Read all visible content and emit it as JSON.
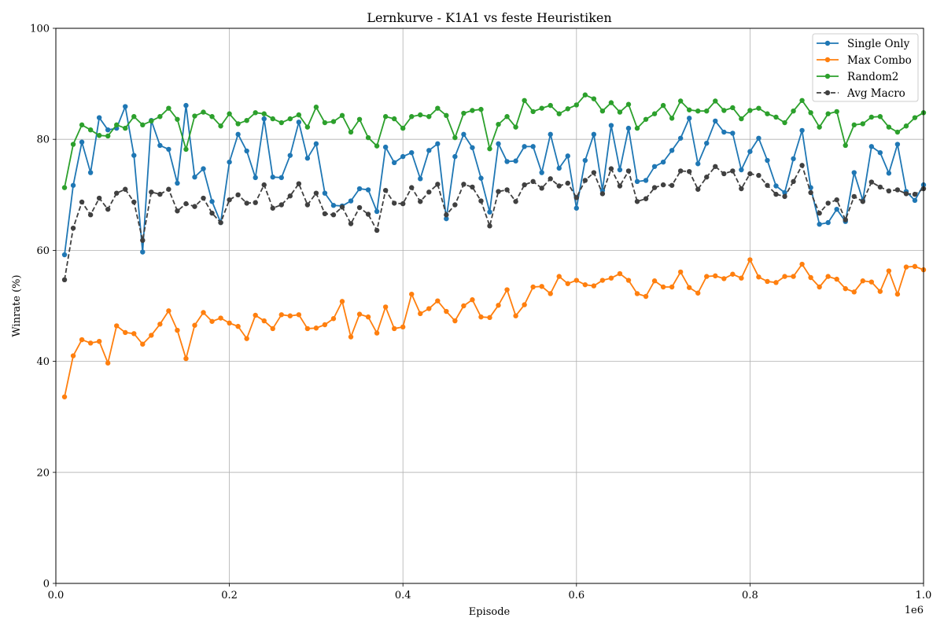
{
  "chart_data": {
    "type": "line",
    "title": "Lernkurve - K1A1 vs feste Heuristiken",
    "xlabel": "Episode",
    "ylabel": "Winrate (%)",
    "x_offset_label": "1e6",
    "xlim": [
      0,
      1000000
    ],
    "ylim": [
      0,
      100
    ],
    "x_ticks": [
      0,
      200000,
      400000,
      600000,
      800000,
      1000000
    ],
    "x_tick_labels": [
      "0.0",
      "0.2",
      "0.4",
      "0.6",
      "0.8",
      "1.0"
    ],
    "y_ticks": [
      0,
      20,
      40,
      60,
      80,
      100
    ],
    "y_tick_labels": [
      "0",
      "20",
      "40",
      "60",
      "80",
      "100"
    ],
    "grid": true,
    "legend_position": "top-right",
    "x": [
      10000,
      20000,
      30000,
      40000,
      50000,
      60000,
      70000,
      80000,
      90000,
      100000,
      110000,
      120000,
      130000,
      140000,
      150000,
      160000,
      170000,
      180000,
      190000,
      200000,
      210000,
      220000,
      230000,
      240000,
      250000,
      260000,
      270000,
      280000,
      290000,
      300000,
      310000,
      320000,
      330000,
      340000,
      350000,
      360000,
      370000,
      380000,
      390000,
      400000,
      410000,
      420000,
      430000,
      440000,
      450000,
      460000,
      470000,
      480000,
      490000,
      500000,
      510000,
      520000,
      530000,
      540000,
      550000,
      560000,
      570000,
      580000,
      590000,
      600000,
      610000,
      620000,
      630000,
      640000,
      650000,
      660000,
      670000,
      680000,
      690000,
      700000,
      710000,
      720000,
      730000,
      740000,
      750000,
      760000,
      770000,
      780000,
      790000,
      800000,
      810000,
      820000,
      830000,
      840000,
      850000,
      860000,
      870000,
      880000,
      890000,
      900000,
      910000,
      920000,
      930000,
      940000,
      950000,
      960000,
      970000,
      980000,
      990000,
      1000000
    ],
    "series": [
      {
        "name": "Single Only",
        "color": "#1f77b4",
        "style": "solid",
        "values": [
          59.2,
          71.7,
          79.5,
          74.0,
          83.9,
          81.7,
          82.0,
          85.9,
          77.1,
          59.7,
          83.4,
          78.9,
          78.2,
          72.1,
          86.1,
          73.2,
          74.7,
          68.8,
          65.0,
          75.9,
          80.9,
          77.9,
          73.1,
          83.7,
          73.2,
          73.1,
          77.1,
          83.1,
          76.6,
          79.2,
          70.3,
          68.1,
          68.0,
          68.9,
          71.1,
          70.9,
          67.0,
          78.6,
          75.8,
          76.9,
          77.6,
          72.9,
          78.0,
          79.2,
          65.7,
          76.9,
          80.9,
          78.5,
          73.0,
          66.9,
          79.2,
          76.0,
          76.1,
          78.7,
          78.7,
          74.0,
          80.9,
          74.8,
          77.0,
          67.6,
          76.2,
          80.9,
          70.8,
          82.5,
          74.5,
          82.0,
          72.4,
          72.6,
          75.1,
          75.9,
          78.0,
          80.2,
          83.8,
          75.6,
          79.3,
          83.3,
          81.3,
          81.1,
          74.5,
          77.8,
          80.2,
          76.2,
          71.6,
          70.4,
          76.5,
          81.6,
          71.3,
          64.7,
          65.0,
          67.4,
          65.2,
          74.0,
          69.0,
          78.7,
          77.6,
          73.9,
          79.1,
          70.6,
          69.0,
          71.8
        ]
      },
      {
        "name": "Max Combo",
        "color": "#ff7f0e",
        "style": "solid",
        "values": [
          33.6,
          41.0,
          43.9,
          43.3,
          43.6,
          39.7,
          46.4,
          45.2,
          45.0,
          43.1,
          44.7,
          46.7,
          49.1,
          45.6,
          40.5,
          46.5,
          48.8,
          47.2,
          47.8,
          46.9,
          46.3,
          44.1,
          48.3,
          47.3,
          45.9,
          48.4,
          48.2,
          48.4,
          45.9,
          46.0,
          46.6,
          47.7,
          50.8,
          44.4,
          48.5,
          48.0,
          45.1,
          49.8,
          45.9,
          46.2,
          52.1,
          48.6,
          49.5,
          50.9,
          49.0,
          47.3,
          50.0,
          51.1,
          48.0,
          47.9,
          50.1,
          52.9,
          48.2,
          50.2,
          53.4,
          53.5,
          52.2,
          55.3,
          54.0,
          54.6,
          53.8,
          53.6,
          54.6,
          55.0,
          55.8,
          54.6,
          52.2,
          51.7,
          54.5,
          53.4,
          53.4,
          56.1,
          53.3,
          52.3,
          55.3,
          55.4,
          54.9,
          55.7,
          55.0,
          58.3,
          55.2,
          54.4,
          54.2,
          55.3,
          55.3,
          57.5,
          55.1,
          53.4,
          55.3,
          54.8,
          53.1,
          52.5,
          54.5,
          54.3,
          52.6,
          56.3,
          52.1,
          57.0,
          57.1,
          56.5
        ]
      },
      {
        "name": "Random2",
        "color": "#2ca02c",
        "style": "solid",
        "values": [
          71.3,
          79.1,
          82.6,
          81.7,
          80.7,
          80.6,
          82.6,
          82.0,
          84.1,
          82.6,
          83.3,
          84.1,
          85.6,
          83.6,
          78.2,
          84.2,
          84.9,
          84.1,
          82.4,
          84.6,
          82.8,
          83.4,
          84.8,
          84.6,
          83.7,
          83.0,
          83.7,
          84.4,
          82.2,
          85.8,
          83.0,
          83.2,
          84.3,
          81.3,
          83.6,
          80.3,
          78.8,
          84.1,
          83.7,
          82.0,
          84.1,
          84.4,
          84.1,
          85.6,
          84.3,
          80.3,
          84.7,
          85.2,
          85.4,
          78.3,
          82.7,
          84.1,
          82.2,
          87.0,
          85.0,
          85.6,
          86.1,
          84.6,
          85.5,
          86.2,
          88.0,
          87.3,
          85.1,
          86.6,
          84.9,
          86.3,
          82.0,
          83.6,
          84.6,
          86.1,
          83.8,
          86.9,
          85.3,
          85.1,
          85.1,
          86.9,
          85.2,
          85.7,
          83.7,
          85.2,
          85.6,
          84.6,
          84.0,
          83.0,
          85.1,
          87.0,
          84.8,
          82.2,
          84.6,
          85.0,
          78.9,
          82.6,
          82.8,
          84.0,
          84.1,
          82.2,
          81.3,
          82.4,
          83.9,
          84.8
        ]
      },
      {
        "name": "Avg Macro",
        "color": "#404040",
        "style": "dashed",
        "values": [
          54.7,
          64.0,
          68.7,
          66.4,
          69.4,
          67.4,
          70.3,
          71.0,
          68.7,
          61.8,
          70.5,
          70.1,
          71.0,
          67.1,
          68.4,
          67.9,
          69.4,
          66.7,
          65.0,
          69.1,
          70.0,
          68.5,
          68.6,
          71.8,
          67.6,
          68.2,
          69.8,
          72.0,
          68.2,
          70.3,
          66.6,
          66.4,
          67.8,
          64.8,
          67.7,
          66.5,
          63.6,
          70.8,
          68.5,
          68.4,
          71.3,
          68.8,
          70.5,
          71.9,
          66.4,
          68.2,
          71.9,
          71.4,
          68.9,
          64.4,
          70.6,
          70.9,
          68.8,
          71.8,
          72.4,
          71.2,
          72.9,
          71.6,
          72.1,
          69.5,
          72.6,
          74.0,
          70.2,
          74.7,
          71.6,
          74.3,
          68.8,
          69.3,
          71.3,
          71.8,
          71.7,
          74.3,
          74.2,
          71.0,
          73.2,
          75.1,
          73.8,
          74.3,
          71.1,
          73.8,
          73.5,
          71.7,
          70.1,
          69.7,
          72.4,
          75.3,
          70.4,
          66.7,
          68.5,
          69.1,
          65.5,
          69.7,
          68.8,
          72.3,
          71.4,
          70.7,
          70.9,
          70.2,
          70.1,
          71.1
        ]
      }
    ]
  }
}
